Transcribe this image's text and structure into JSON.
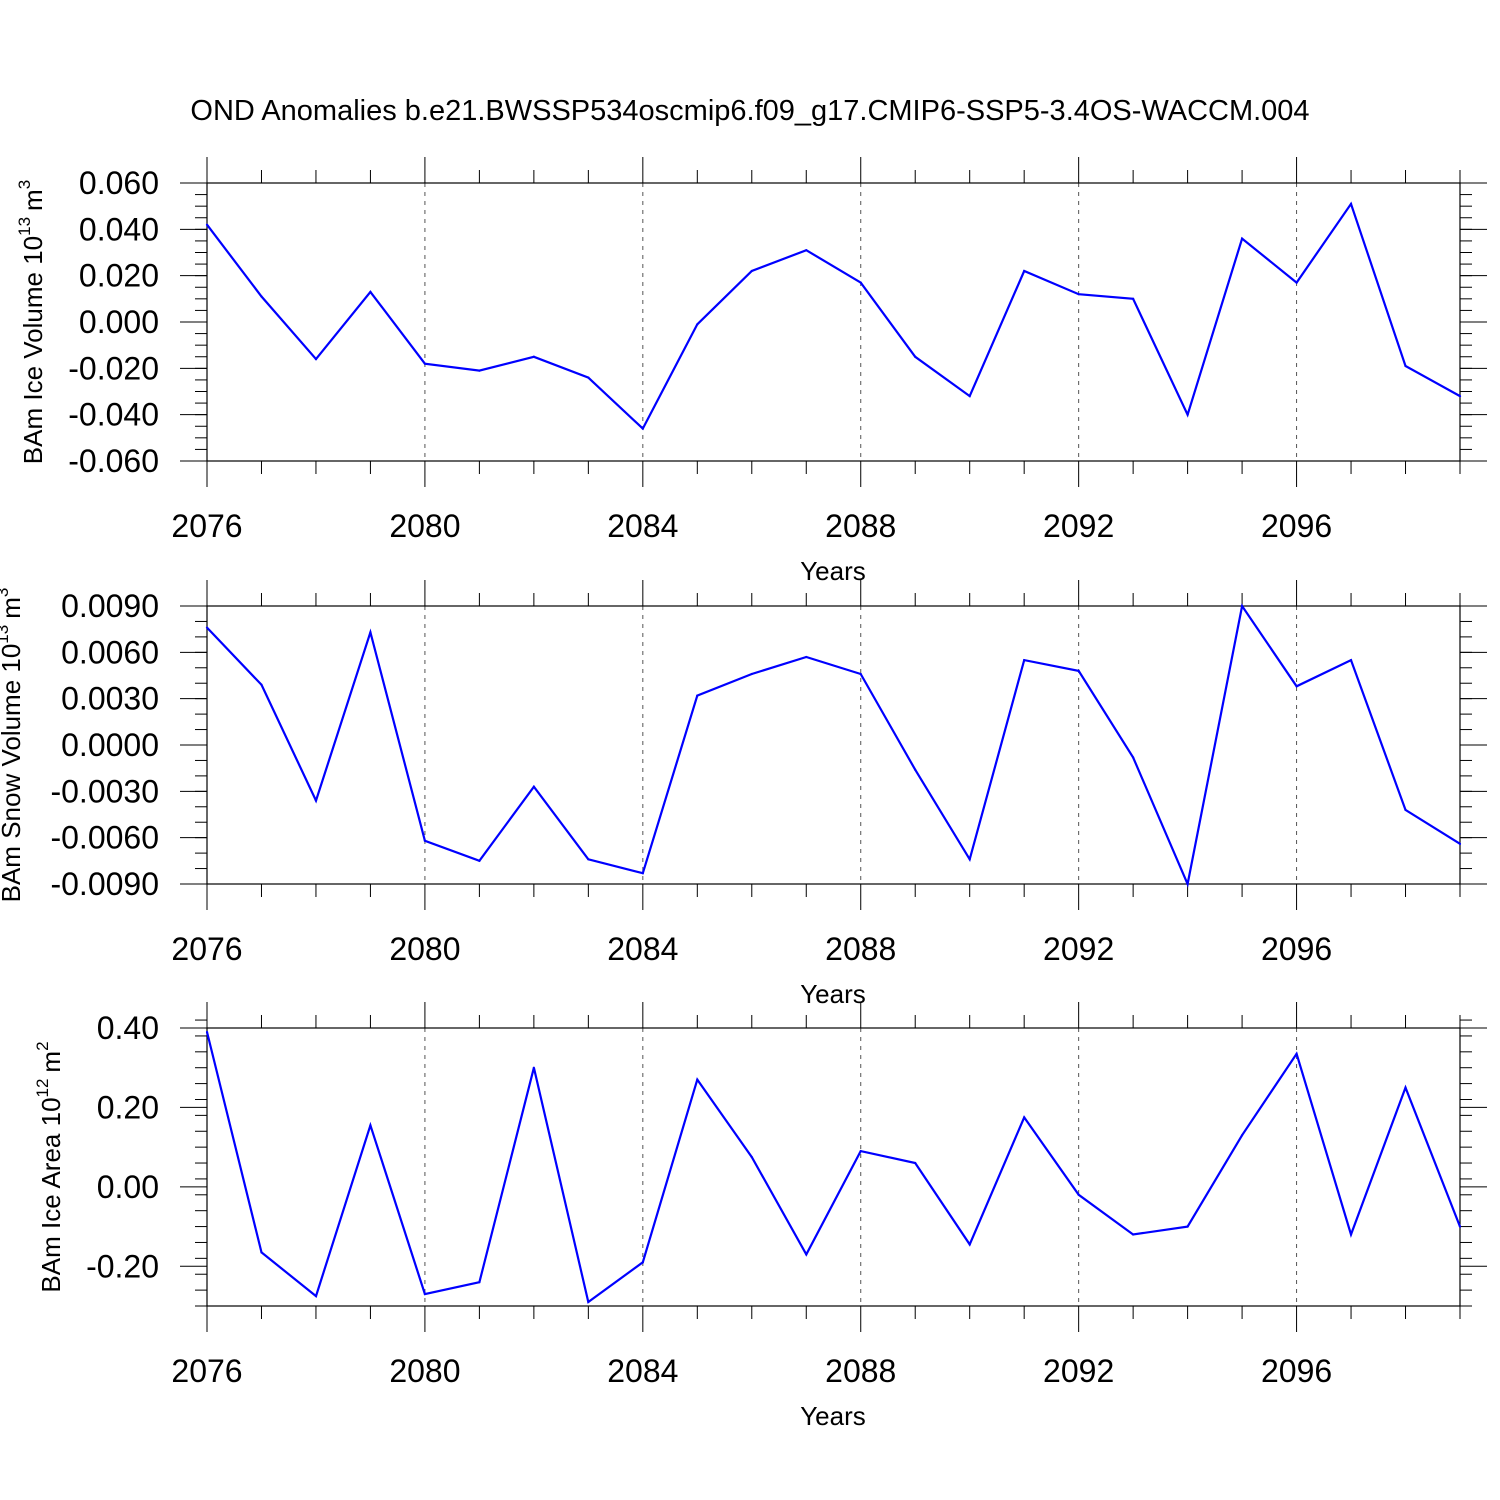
{
  "title": "OND Anomalies b.e21.BWSSP534oscmip6.f09_g17.CMIP6-SSP5-3.4OS-WACCM.004",
  "chart_data": [
    {
      "type": "line",
      "ylabel_main": "BAm Ice Volume 10",
      "ylabel_exp": "13",
      "ylabel_unit": "m",
      "ylabel_unit_exp": "3",
      "xlabel": "Years",
      "xlim": [
        2076,
        2099
      ],
      "ylim": [
        -0.06,
        0.06
      ],
      "y_ticks": [
        -0.06,
        -0.04,
        -0.02,
        0.0,
        0.02,
        0.04,
        0.06
      ],
      "y_tick_labels": [
        "-0.060",
        "-0.040",
        "-0.020",
        "0.000",
        "0.020",
        "0.040",
        "0.060"
      ],
      "y_minor_step": 0.005,
      "x_ticks": [
        2076,
        2080,
        2084,
        2088,
        2092,
        2096
      ],
      "x_tick_labels": [
        "2076",
        "2080",
        "2084",
        "2088",
        "2092",
        "2096"
      ],
      "x_gridlines": [
        2080,
        2084,
        2088,
        2092,
        2096
      ],
      "line_color": "#0000ff",
      "x": [
        2076,
        2077,
        2078,
        2079,
        2080,
        2081,
        2082,
        2083,
        2084,
        2085,
        2086,
        2087,
        2088,
        2089,
        2090,
        2091,
        2092,
        2093,
        2094,
        2095,
        2096,
        2097,
        2098,
        2099
      ],
      "values": [
        0.042,
        0.011,
        -0.016,
        0.013,
        -0.018,
        -0.021,
        -0.015,
        -0.024,
        -0.046,
        -0.001,
        0.022,
        0.031,
        0.017,
        -0.015,
        -0.032,
        0.022,
        0.012,
        0.01,
        -0.04,
        0.036,
        0.017,
        0.051,
        -0.019,
        -0.032
      ]
    },
    {
      "type": "line",
      "ylabel_main": "BAm Snow Volume 10",
      "ylabel_exp": "13",
      "ylabel_unit": "m",
      "ylabel_unit_exp": "3",
      "xlabel": "Years",
      "xlim": [
        2076,
        2099
      ],
      "ylim": [
        -0.009,
        0.009
      ],
      "y_ticks": [
        -0.009,
        -0.006,
        -0.003,
        0.0,
        0.003,
        0.006,
        0.009
      ],
      "y_tick_labels": [
        "-0.0090",
        "-0.0060",
        "-0.0030",
        "0.0000",
        "0.0030",
        "0.0060",
        "0.0090"
      ],
      "y_minor_step": 0.001,
      "x_ticks": [
        2076,
        2080,
        2084,
        2088,
        2092,
        2096
      ],
      "x_tick_labels": [
        "2076",
        "2080",
        "2084",
        "2088",
        "2092",
        "2096"
      ],
      "x_gridlines": [
        2080,
        2084,
        2088,
        2092,
        2096
      ],
      "line_color": "#0000ff",
      "x": [
        2076,
        2077,
        2078,
        2079,
        2080,
        2081,
        2082,
        2083,
        2084,
        2085,
        2086,
        2087,
        2088,
        2089,
        2090,
        2091,
        2092,
        2093,
        2094,
        2095,
        2096,
        2097,
        2098,
        2099
      ],
      "values": [
        0.0076,
        0.0039,
        -0.0036,
        0.0073,
        -0.0062,
        -0.0075,
        -0.0027,
        -0.0074,
        -0.0083,
        0.0032,
        0.0046,
        0.0057,
        0.0046,
        -0.0016,
        -0.0074,
        0.0055,
        0.0048,
        -0.0008,
        -0.009,
        0.009,
        0.0038,
        0.0055,
        -0.0042,
        -0.0064
      ]
    },
    {
      "type": "line",
      "ylabel_main": "BAm Ice Area 10",
      "ylabel_exp": "12",
      "ylabel_unit": "m",
      "ylabel_unit_exp": "2",
      "xlabel": "Years",
      "xlim": [
        2076,
        2099
      ],
      "ylim": [
        -0.3,
        0.4
      ],
      "y_ticks": [
        -0.2,
        0.0,
        0.2,
        0.4
      ],
      "y_tick_labels": [
        "-0.20",
        "0.00",
        "0.20",
        "0.40"
      ],
      "y_minor_step": 0.04,
      "x_ticks": [
        2076,
        2080,
        2084,
        2088,
        2092,
        2096
      ],
      "x_tick_labels": [
        "2076",
        "2080",
        "2084",
        "2088",
        "2092",
        "2096"
      ],
      "x_gridlines": [
        2080,
        2084,
        2088,
        2092,
        2096
      ],
      "line_color": "#0000ff",
      "x": [
        2076,
        2077,
        2078,
        2079,
        2080,
        2081,
        2082,
        2083,
        2084,
        2085,
        2086,
        2087,
        2088,
        2089,
        2090,
        2091,
        2092,
        2093,
        2094,
        2095,
        2096,
        2097,
        2098,
        2099
      ],
      "values": [
        0.39,
        -0.165,
        -0.275,
        0.155,
        -0.27,
        -0.24,
        0.3,
        -0.29,
        -0.19,
        0.27,
        0.075,
        -0.17,
        0.09,
        0.06,
        -0.145,
        0.175,
        -0.02,
        -0.12,
        -0.1,
        0.13,
        0.335,
        -0.12,
        0.25,
        -0.1
      ]
    }
  ]
}
